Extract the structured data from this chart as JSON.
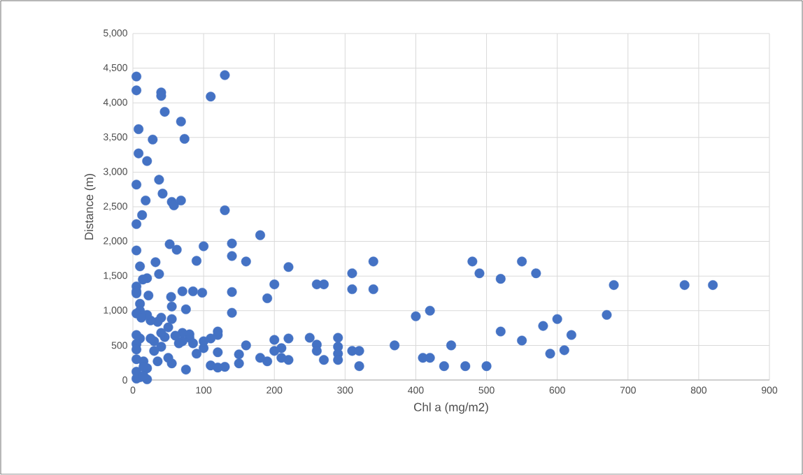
{
  "chart_data": {
    "type": "scatter",
    "xlabel": "Chl a (mg/m2)",
    "ylabel": "Distance (m)",
    "xlim": [
      0,
      900
    ],
    "xticks": [
      0,
      100,
      200,
      300,
      400,
      500,
      600,
      700,
      800,
      900
    ],
    "ylim": [
      0,
      5000
    ],
    "yticks": [
      0,
      500,
      {
        "value": 1000,
        "label": "1,000"
      },
      {
        "value": 1500,
        "label": "1,500"
      },
      {
        "value": 2000,
        "label": "2,000"
      },
      {
        "value": 2500,
        "label": "2,500"
      },
      {
        "value": 3000,
        "label": "3,000"
      },
      {
        "value": 3500,
        "label": "3,500"
      },
      {
        "value": 4000,
        "label": "4,000"
      },
      {
        "value": 4500,
        "label": "4,500"
      },
      {
        "value": 5000,
        "label": "5,000"
      }
    ],
    "grid": true,
    "series": [
      {
        "color": "#4472c4",
        "x": [
          5,
          5,
          40,
          40,
          110,
          130,
          45,
          68,
          73,
          28,
          8,
          8,
          20,
          5,
          37,
          42,
          18,
          55,
          58,
          68,
          130,
          13,
          5,
          180,
          52,
          62,
          100,
          140,
          5,
          140,
          160,
          90,
          32,
          10,
          220,
          37,
          20,
          14,
          5,
          5,
          5,
          22,
          54,
          55,
          70,
          85,
          98,
          140,
          75,
          190,
          140,
          200,
          260,
          270,
          310,
          340,
          310,
          340,
          400,
          420,
          480,
          490,
          520,
          550,
          570,
          580,
          600,
          520,
          670,
          680,
          780,
          820,
          620,
          610,
          590,
          550,
          500,
          470,
          440,
          450,
          410,
          420,
          370,
          320,
          310,
          320,
          290,
          290,
          290,
          290,
          250,
          260,
          260,
          270,
          220,
          220,
          210,
          210,
          200,
          200,
          190,
          180,
          160,
          150,
          150,
          130,
          120,
          110,
          120,
          120,
          120,
          110,
          100,
          100,
          90,
          85,
          80,
          80,
          75,
          70,
          70,
          65,
          60,
          55,
          50,
          55,
          50,
          45,
          40,
          40,
          40,
          35,
          35,
          30,
          30,
          25,
          25,
          20,
          20,
          20,
          15,
          15,
          10,
          10,
          10,
          10,
          5,
          5,
          5,
          5,
          5,
          5,
          5,
          15,
          12
        ],
        "values": [
          4380,
          4180,
          4150,
          4100,
          4090,
          4400,
          3870,
          3730,
          3480,
          3470,
          3620,
          3270,
          3160,
          2820,
          2890,
          2690,
          2590,
          2570,
          2520,
          2590,
          2450,
          2380,
          2250,
          2090,
          1960,
          1880,
          1930,
          1970,
          1870,
          1790,
          1710,
          1720,
          1700,
          1640,
          1630,
          1530,
          1470,
          1450,
          1350,
          1280,
          1250,
          1220,
          1200,
          1060,
          1280,
          1280,
          1260,
          1270,
          1020,
          1180,
          970,
          1380,
          1380,
          1380,
          1540,
          1710,
          1310,
          1310,
          920,
          1000,
          1710,
          1540,
          1460,
          1710,
          1540,
          780,
          880,
          700,
          940,
          1370,
          1370,
          1370,
          650,
          430,
          380,
          570,
          200,
          200,
          200,
          500,
          320,
          320,
          500,
          200,
          420,
          420,
          610,
          480,
          380,
          290,
          610,
          510,
          420,
          290,
          600,
          290,
          460,
          320,
          580,
          420,
          270,
          320,
          500,
          370,
          240,
          190,
          180,
          210,
          650,
          400,
          700,
          600,
          460,
          560,
          380,
          530,
          610,
          660,
          150,
          560,
          680,
          530,
          640,
          240,
          320,
          880,
          760,
          620,
          480,
          680,
          900,
          270,
          840,
          560,
          420,
          600,
          860,
          940,
          170,
          10,
          270,
          190,
          40,
          1100,
          1000,
          600,
          650,
          520,
          440,
          300,
          120,
          20,
          960,
          60,
          900
        ]
      }
    ]
  }
}
